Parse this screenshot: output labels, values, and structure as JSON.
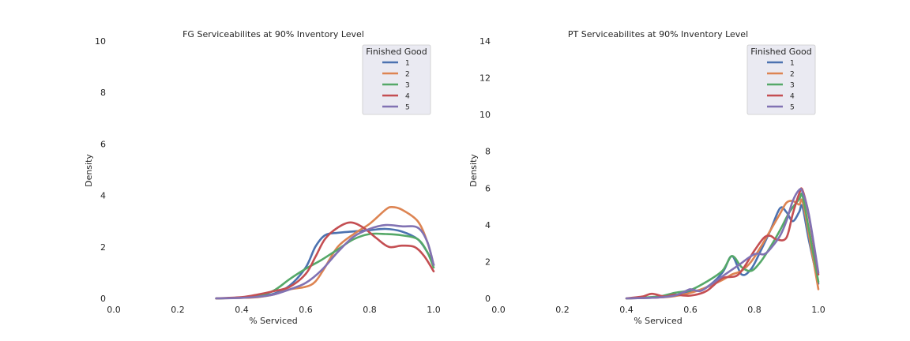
{
  "chart_data": [
    {
      "type": "line",
      "title": "FG Serviceabilites at 90% Inventory Level",
      "xlabel": "% Serviced",
      "ylabel": "Density",
      "xlim": [
        0.0,
        1.0
      ],
      "ylim": [
        0,
        10
      ],
      "xticks": [
        "0.0",
        "0.2",
        "0.4",
        "0.6",
        "0.8",
        "1.0"
      ],
      "yticks": [
        "0",
        "2",
        "4",
        "6",
        "8",
        "10"
      ],
      "grid": false,
      "legend": {
        "title": "Finished Good",
        "position": "top-right"
      },
      "series": [
        {
          "name": "1",
          "color": "#4c72b0",
          "x": [
            0.32,
            0.4,
            0.45,
            0.5,
            0.55,
            0.6,
            0.63,
            0.66,
            0.7,
            0.75,
            0.8,
            0.85,
            0.9,
            0.95,
            0.98,
            1.0
          ],
          "y": [
            0.0,
            0.03,
            0.08,
            0.18,
            0.5,
            1.2,
            2.0,
            2.45,
            2.55,
            2.6,
            2.65,
            2.7,
            2.6,
            2.3,
            1.8,
            1.3
          ]
        },
        {
          "name": "2",
          "color": "#dd8452",
          "x": [
            0.32,
            0.4,
            0.45,
            0.5,
            0.55,
            0.6,
            0.63,
            0.66,
            0.7,
            0.75,
            0.8,
            0.85,
            0.87,
            0.9,
            0.95,
            0.98,
            1.0
          ],
          "y": [
            0.0,
            0.02,
            0.05,
            0.15,
            0.35,
            0.45,
            0.65,
            1.2,
            2.0,
            2.5,
            2.9,
            3.45,
            3.55,
            3.45,
            3.0,
            2.2,
            1.3
          ]
        },
        {
          "name": "3",
          "color": "#55a868",
          "x": [
            0.32,
            0.4,
            0.45,
            0.5,
            0.55,
            0.6,
            0.65,
            0.7,
            0.75,
            0.8,
            0.85,
            0.9,
            0.95,
            0.98,
            1.0
          ],
          "y": [
            0.0,
            0.03,
            0.1,
            0.3,
            0.75,
            1.15,
            1.5,
            1.9,
            2.3,
            2.5,
            2.5,
            2.45,
            2.3,
            1.8,
            1.2
          ]
        },
        {
          "name": "4",
          "color": "#c44e52",
          "x": [
            0.32,
            0.4,
            0.45,
            0.5,
            0.55,
            0.6,
            0.63,
            0.66,
            0.7,
            0.74,
            0.78,
            0.82,
            0.86,
            0.9,
            0.94,
            0.97,
            1.0
          ],
          "y": [
            0.0,
            0.05,
            0.15,
            0.28,
            0.45,
            0.95,
            1.6,
            2.3,
            2.75,
            2.95,
            2.75,
            2.35,
            2.0,
            2.05,
            2.0,
            1.65,
            1.05
          ]
        },
        {
          "name": "5",
          "color": "#8172b3",
          "x": [
            0.32,
            0.4,
            0.45,
            0.5,
            0.55,
            0.6,
            0.65,
            0.7,
            0.75,
            0.8,
            0.85,
            0.9,
            0.95,
            0.98,
            1.0
          ],
          "y": [
            0.0,
            0.02,
            0.06,
            0.15,
            0.35,
            0.6,
            1.1,
            1.8,
            2.4,
            2.7,
            2.85,
            2.8,
            2.75,
            2.2,
            1.3
          ]
        }
      ]
    },
    {
      "type": "line",
      "title": "PT Serviceabilites at 90% Inventory Level",
      "xlabel": "% Serviced",
      "ylabel": "Density",
      "xlim": [
        0.0,
        1.0
      ],
      "ylim": [
        0,
        14
      ],
      "xticks": [
        "0.0",
        "0.2",
        "0.4",
        "0.6",
        "0.8",
        "1.0"
      ],
      "yticks": [
        "0",
        "2",
        "4",
        "6",
        "8",
        "10",
        "12",
        "14"
      ],
      "grid": false,
      "legend": {
        "title": "Finished Good",
        "position": "top-right"
      },
      "series": [
        {
          "name": "1",
          "color": "#4c72b0",
          "x": [
            0.4,
            0.5,
            0.55,
            0.6,
            0.65,
            0.7,
            0.73,
            0.76,
            0.79,
            0.82,
            0.85,
            0.88,
            0.9,
            0.92,
            0.94,
            0.95,
            0.97,
            1.0
          ],
          "y": [
            0.0,
            0.05,
            0.15,
            0.35,
            0.6,
            1.4,
            2.3,
            1.3,
            1.6,
            2.6,
            3.7,
            4.9,
            4.7,
            4.2,
            4.7,
            5.0,
            3.2,
            0.8
          ]
        },
        {
          "name": "2",
          "color": "#dd8452",
          "x": [
            0.4,
            0.5,
            0.55,
            0.6,
            0.65,
            0.7,
            0.73,
            0.76,
            0.79,
            0.82,
            0.85,
            0.88,
            0.9,
            0.92,
            0.94,
            0.95,
            0.97,
            1.0
          ],
          "y": [
            0.0,
            0.05,
            0.12,
            0.3,
            0.6,
            1.0,
            1.3,
            1.5,
            2.0,
            2.8,
            3.7,
            4.6,
            5.2,
            5.3,
            5.1,
            5.3,
            3.5,
            0.5
          ]
        },
        {
          "name": "3",
          "color": "#55a868",
          "x": [
            0.4,
            0.5,
            0.55,
            0.6,
            0.65,
            0.7,
            0.73,
            0.76,
            0.79,
            0.82,
            0.85,
            0.88,
            0.91,
            0.94,
            0.95,
            0.97,
            1.0
          ],
          "y": [
            0.0,
            0.1,
            0.3,
            0.45,
            0.9,
            1.5,
            2.3,
            1.7,
            1.5,
            2.0,
            2.8,
            3.7,
            4.7,
            5.4,
            5.6,
            3.8,
            0.9
          ]
        },
        {
          "name": "4",
          "color": "#c44e52",
          "x": [
            0.4,
            0.45,
            0.48,
            0.52,
            0.55,
            0.6,
            0.65,
            0.7,
            0.75,
            0.8,
            0.83,
            0.85,
            0.87,
            0.9,
            0.92,
            0.94,
            0.95,
            0.97,
            1.0
          ],
          "y": [
            0.0,
            0.1,
            0.25,
            0.1,
            0.2,
            0.15,
            0.4,
            1.1,
            1.3,
            2.6,
            3.3,
            3.4,
            3.2,
            3.3,
            4.6,
            5.7,
            5.9,
            4.5,
            1.3
          ]
        },
        {
          "name": "5",
          "color": "#8172b3",
          "x": [
            0.4,
            0.5,
            0.55,
            0.58,
            0.6,
            0.63,
            0.66,
            0.7,
            0.75,
            0.8,
            0.83,
            0.85,
            0.88,
            0.9,
            0.92,
            0.94,
            0.95,
            0.97,
            1.0
          ],
          "y": [
            0.0,
            0.05,
            0.15,
            0.35,
            0.5,
            0.4,
            0.7,
            1.2,
            1.8,
            2.4,
            2.4,
            2.7,
            3.4,
            4.2,
            5.3,
            5.9,
            5.8,
            4.6,
            1.4
          ]
        }
      ]
    }
  ]
}
